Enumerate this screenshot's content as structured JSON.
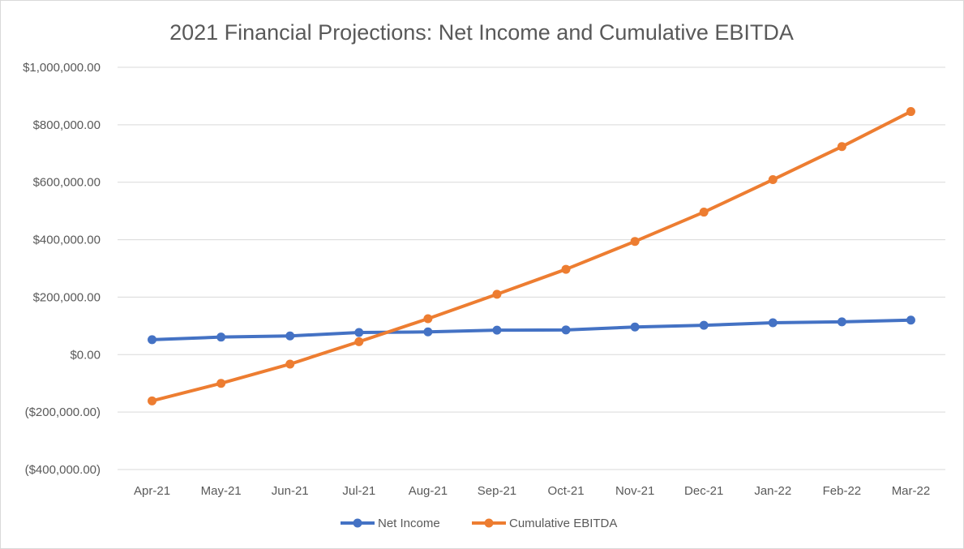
{
  "chart_data": {
    "type": "line",
    "title": "2021 Financial Projections: Net Income and Cumulative EBITDA",
    "categories": [
      "Apr-21",
      "May-21",
      "Jun-21",
      "Jul-21",
      "Aug-21",
      "Sep-21",
      "Oct-21",
      "Nov-21",
      "Dec-21",
      "Jan-22",
      "Feb-22",
      "Mar-22"
    ],
    "y_tick_values": [
      -400000,
      -200000,
      0,
      200000,
      400000,
      600000,
      800000,
      1000000
    ],
    "y_tick_labels": [
      "($400,000.00)",
      "($200,000.00)",
      "$0.00",
      "$200,000.00",
      "$400,000.00",
      "$600,000.00",
      "$800,000.00",
      "$1,000,000.00"
    ],
    "ylim": [
      -400000,
      1000000
    ],
    "grid": true,
    "legend_position": "bottom",
    "series": [
      {
        "name": "Net Income",
        "color": "#4472C4",
        "values": [
          52000,
          61000,
          65000,
          77000,
          79000,
          85000,
          86000,
          96000,
          102000,
          111000,
          114000,
          120000
        ]
      },
      {
        "name": "Cumulative EBITDA",
        "color": "#ED7D31",
        "values": [
          -161000,
          -100000,
          -33000,
          45000,
          125000,
          210000,
          297000,
          394000,
          496000,
          609000,
          724000,
          846000
        ]
      }
    ]
  }
}
